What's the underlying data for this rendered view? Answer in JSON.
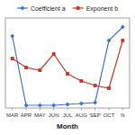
{
  "chart_data": {
    "type": "line",
    "xlabel": "Month",
    "categories": [
      "MAR",
      "APR",
      "MAY",
      "JUN",
      "JUL",
      "AUG",
      "SEP",
      "OCT",
      "N"
    ],
    "series": [
      {
        "name": "Coefficient a",
        "color": "#4472c4",
        "marker": "diamond",
        "values": [
          8.0,
          0.3,
          0.3,
          0.3,
          0.4,
          0.5,
          0.6,
          7.5,
          9.0
        ]
      },
      {
        "name": "Exponent b",
        "color": "#c0392b",
        "marker": "square",
        "axis": "y2",
        "values": [
          1.35,
          1.25,
          1.22,
          1.4,
          1.18,
          1.1,
          1.05,
          1.02,
          1.55
        ]
      }
    ],
    "ylim": [
      0,
      10
    ],
    "y2lim": [
      0.8,
      1.8
    ],
    "tick_labels": "x",
    "grid": false,
    "legend": "top"
  }
}
